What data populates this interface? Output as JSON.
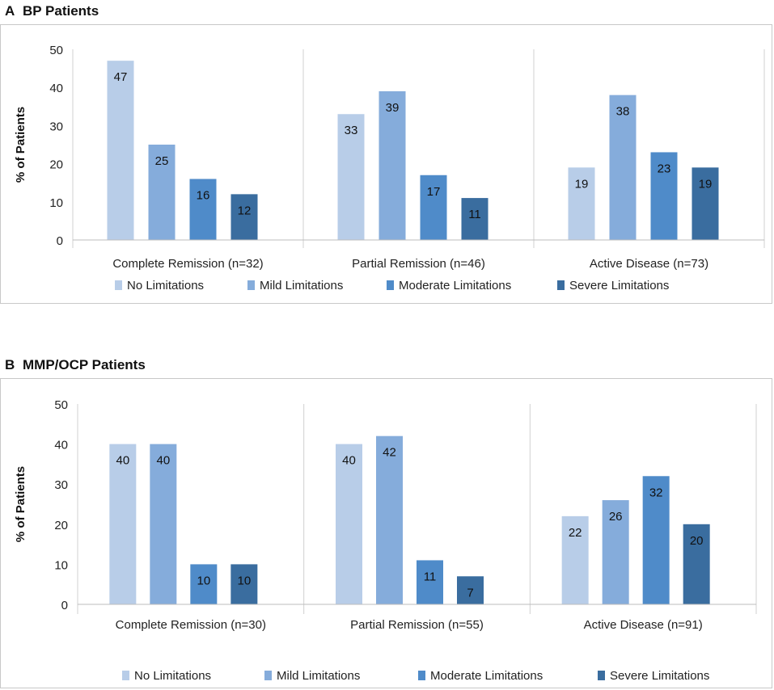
{
  "chart_data": [
    {
      "panel_label": "A",
      "title": "BP Patients",
      "type": "bar",
      "ylabel": "% of Patients",
      "xlabel": "",
      "ylim": [
        0,
        50
      ],
      "yticks": [
        "0",
        "10",
        "20",
        "30",
        "40",
        "50"
      ],
      "categories": [
        "Complete Remission (n=32)",
        "Partial Remission (n=46)",
        "Active Disease (n=73)"
      ],
      "series": [
        {
          "name": "No Limitations",
          "values": [
            47,
            33,
            19
          ],
          "color": "#b8cde8"
        },
        {
          "name": "Mild Limitations",
          "values": [
            25,
            39,
            38
          ],
          "color": "#85acdb"
        },
        {
          "name": "Moderate Limitations",
          "values": [
            16,
            17,
            23
          ],
          "color": "#4f8bc9"
        },
        {
          "name": "Severe Limitations",
          "values": [
            12,
            11,
            19
          ],
          "color": "#3a6d9f"
        }
      ],
      "legend_position": "bottom"
    },
    {
      "panel_label": "B",
      "title": "MMP/OCP Patients",
      "type": "bar",
      "ylabel": "% of Patients",
      "xlabel": "",
      "ylim": [
        0,
        50
      ],
      "yticks": [
        "0",
        "10",
        "20",
        "30",
        "40",
        "50"
      ],
      "categories": [
        "Complete Remission (n=30)",
        "Partial Remission (n=55)",
        "Active Disease (n=91)"
      ],
      "series": [
        {
          "name": "No Limitations",
          "values": [
            40,
            40,
            22
          ],
          "color": "#b8cde8"
        },
        {
          "name": "Mild Limitations",
          "values": [
            40,
            42,
            26
          ],
          "color": "#85acdb"
        },
        {
          "name": "Moderate Limitations",
          "values": [
            10,
            11,
            32
          ],
          "color": "#4f8bc9"
        },
        {
          "name": "Severe Limitations",
          "values": [
            10,
            7,
            20
          ],
          "color": "#3a6d9f"
        }
      ],
      "legend_position": "bottom"
    }
  ]
}
